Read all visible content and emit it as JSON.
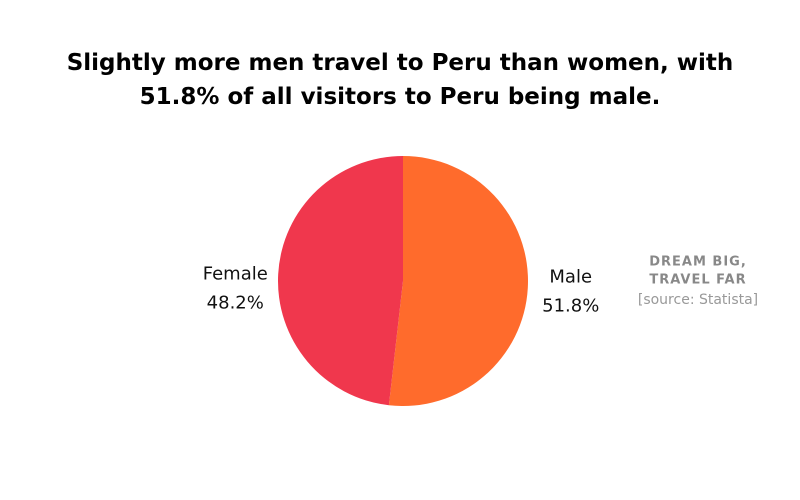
{
  "chart_data": {
    "type": "pie",
    "title": "Slightly more men travel to Peru than women, with 51.8% of all visitors to Peru being male.",
    "categories": [
      "Male",
      "Female"
    ],
    "values": [
      51.8,
      48.2
    ],
    "value_labels": [
      "51.8%",
      "48.2%"
    ],
    "colors": [
      "#ff6b2c",
      "#f0374d"
    ],
    "brand": [
      "DREAM BIG,",
      "TRAVEL FAR"
    ],
    "source": "[source: Statista]"
  }
}
